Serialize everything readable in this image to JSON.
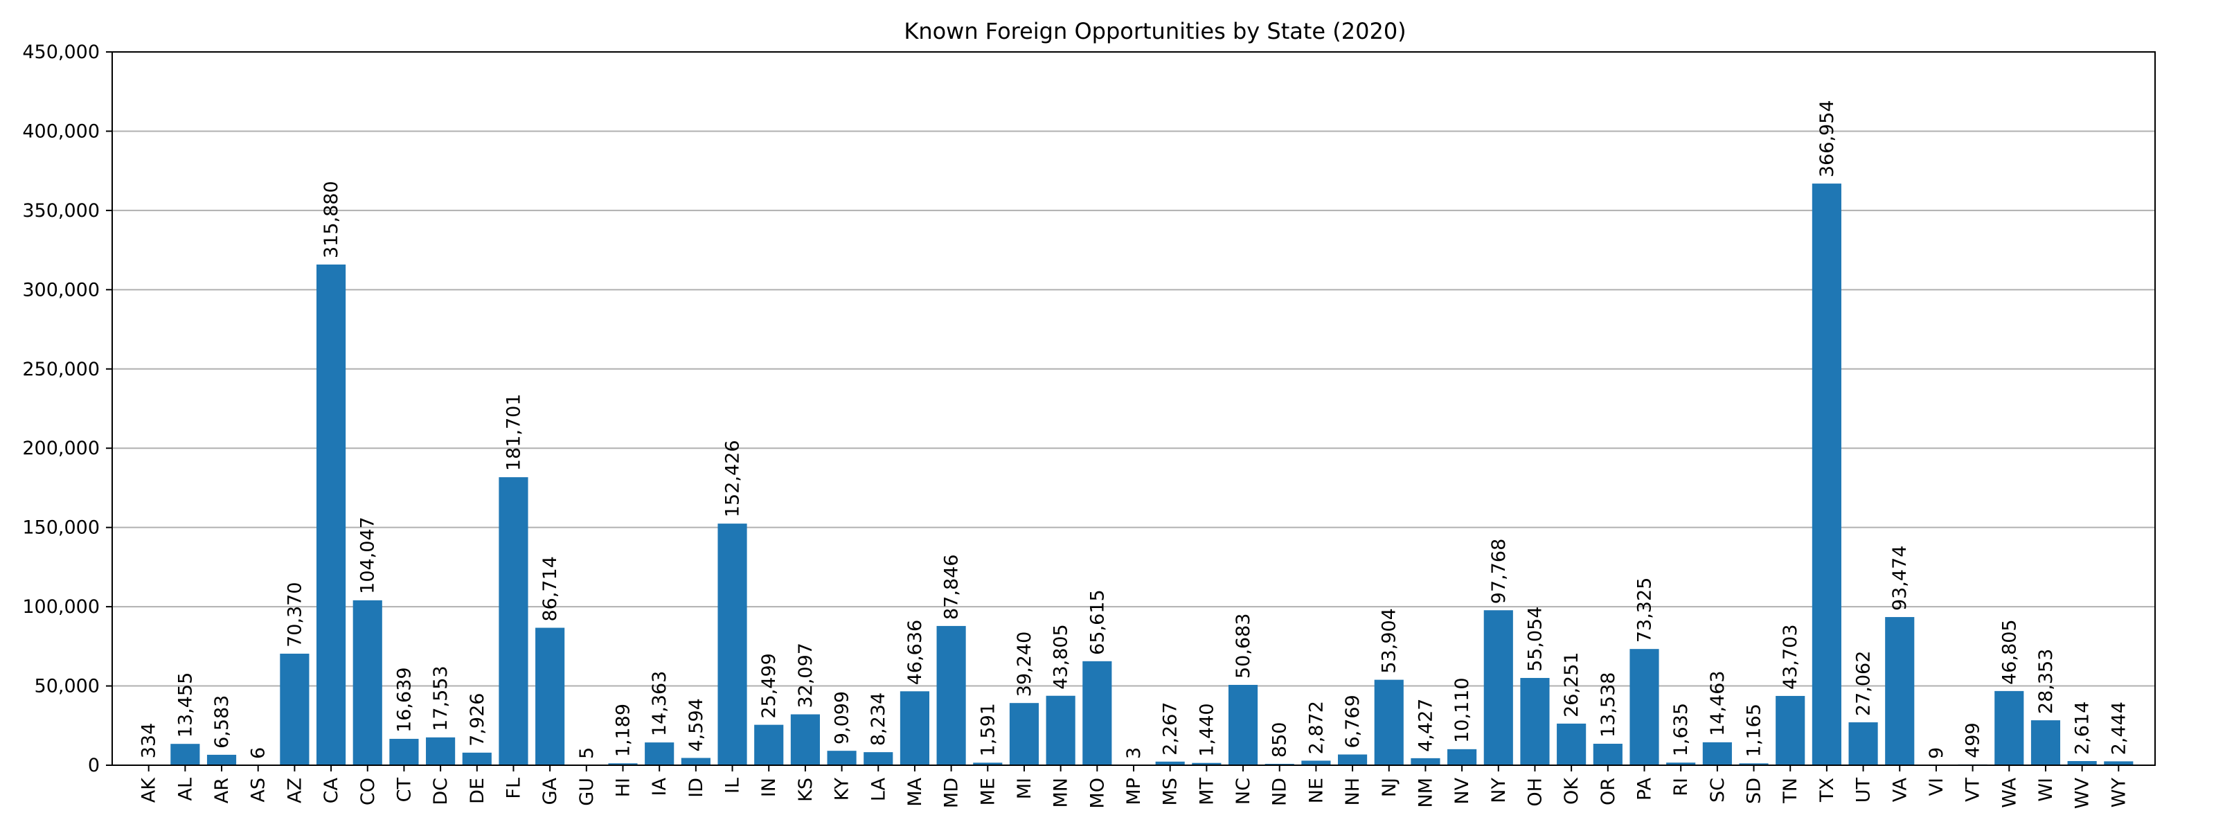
{
  "chart_data": {
    "type": "bar",
    "title": "Known Foreign Opportunities by State (2020)",
    "xlabel": "",
    "ylabel": "",
    "ylim": [
      0,
      450000
    ],
    "yticks": [
      0,
      50000,
      100000,
      150000,
      200000,
      250000,
      300000,
      350000,
      400000,
      450000
    ],
    "ytick_labels": [
      "0",
      "50,000",
      "100,000",
      "150,000",
      "200,000",
      "250,000",
      "300,000",
      "350,000",
      "400,000",
      "450,000"
    ],
    "grid": "horizontal",
    "bar_color": "#1f77b4",
    "categories": [
      "AK",
      "AL",
      "AR",
      "AS",
      "AZ",
      "CA",
      "CO",
      "CT",
      "DC",
      "DE",
      "FL",
      "GA",
      "GU",
      "HI",
      "IA",
      "ID",
      "IL",
      "IN",
      "KS",
      "KY",
      "LA",
      "MA",
      "MD",
      "ME",
      "MI",
      "MN",
      "MO",
      "MP",
      "MS",
      "MT",
      "NC",
      "ND",
      "NE",
      "NH",
      "NJ",
      "NM",
      "NV",
      "NY",
      "OH",
      "OK",
      "OR",
      "PA",
      "RI",
      "SC",
      "SD",
      "TN",
      "TX",
      "UT",
      "VA",
      "VI",
      "VT",
      "WA",
      "WI",
      "WV",
      "WY"
    ],
    "values": [
      334,
      13455,
      6583,
      6,
      70370,
      315880,
      104047,
      16639,
      17553,
      7926,
      181701,
      86714,
      5,
      1189,
      14363,
      4594,
      152426,
      25499,
      32097,
      9099,
      8234,
      46636,
      87846,
      1591,
      39240,
      43805,
      65615,
      3,
      2267,
      1440,
      50683,
      850,
      2872,
      6769,
      53904,
      4427,
      10110,
      97768,
      55054,
      26251,
      13538,
      73325,
      1635,
      14463,
      1165,
      43703,
      366954,
      27062,
      93474,
      9,
      499,
      46805,
      28353,
      2614,
      2444
    ],
    "value_labels": [
      "334",
      "13,455",
      "6,583",
      "6",
      "70,370",
      "315,880",
      "104,047",
      "16,639",
      "17,553",
      "7,926",
      "181,701",
      "86,714",
      "5",
      "1,189",
      "14,363",
      "4,594",
      "152,426",
      "25,499",
      "32,097",
      "9,099",
      "8,234",
      "46,636",
      "87,846",
      "1,591",
      "39,240",
      "43,805",
      "65,615",
      "3",
      "2,267",
      "1,440",
      "50,683",
      "850",
      "2,872",
      "6,769",
      "53,904",
      "4,427",
      "10,110",
      "97,768",
      "55,054",
      "26,251",
      "13,538",
      "73,325",
      "1,635",
      "14,463",
      "1,165",
      "43,703",
      "366,954",
      "27,062",
      "93,474",
      "9",
      "499",
      "46,805",
      "28,353",
      "2,614",
      "2,444"
    ]
  }
}
